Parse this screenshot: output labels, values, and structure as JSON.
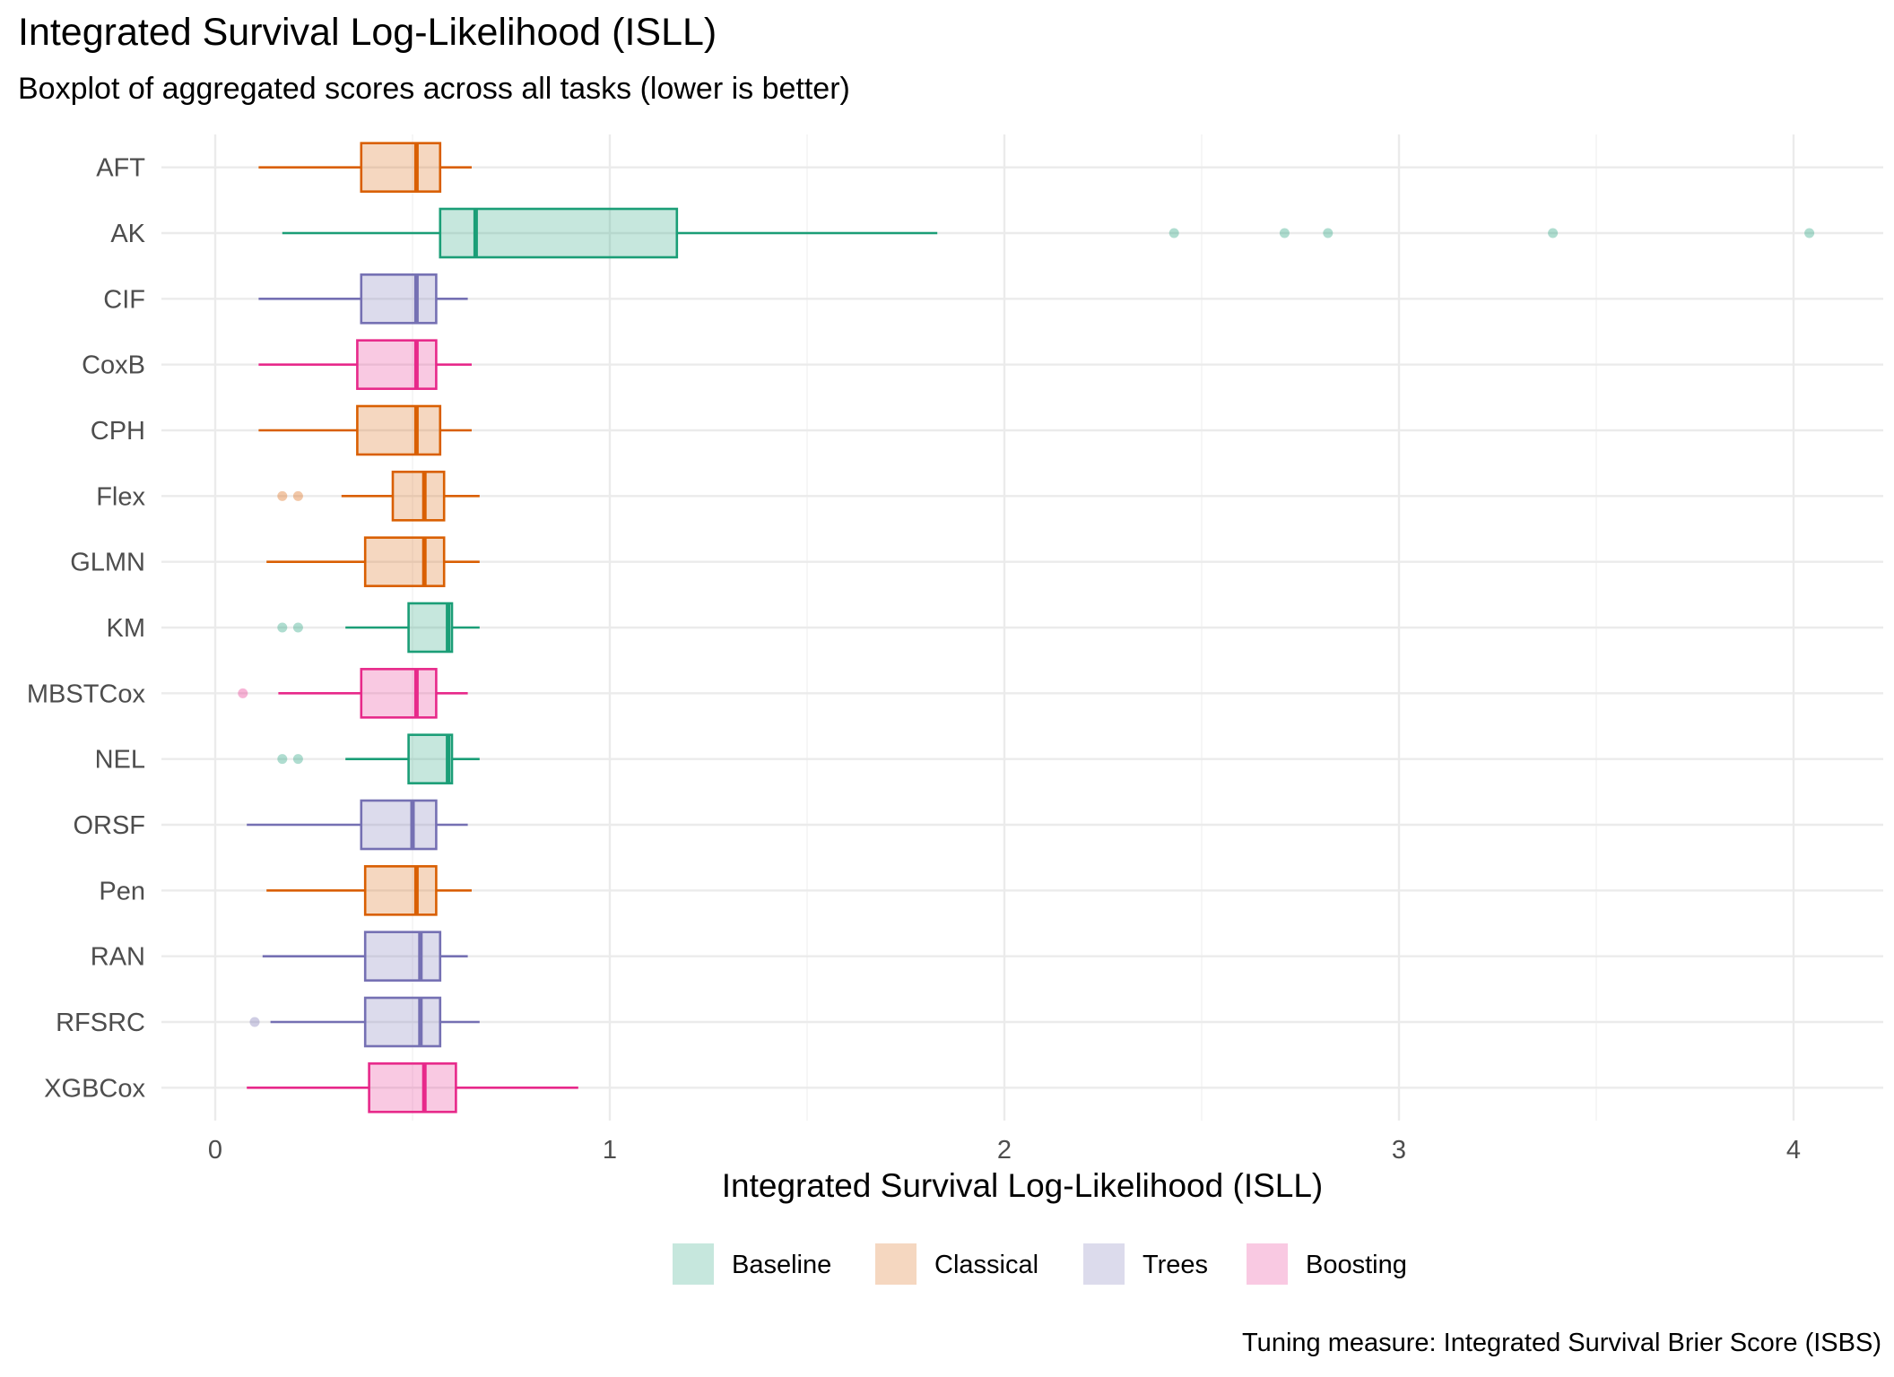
{
  "chart_data": {
    "type": "boxplot",
    "title": "Integrated Survival Log-Likelihood (ISLL)",
    "subtitle": "Boxplot of aggregated scores across all tasks (lower is better)",
    "xlabel": "Integrated Survival Log-Likelihood (ISLL)",
    "ylabel": "",
    "xlim": [
      -0.13,
      4.23
    ],
    "x_ticks": [
      0,
      1,
      2,
      3,
      4
    ],
    "grid": true,
    "legend_position": "bottom",
    "caption": "Tuning measure: Integrated Survival Brier Score (ISBS)",
    "groups": [
      {
        "name": "Baseline",
        "color": "#1B9E77"
      },
      {
        "name": "Classical",
        "color": "#D95F02"
      },
      {
        "name": "Trees",
        "color": "#7570B3"
      },
      {
        "name": "Boosting",
        "color": "#E7298A"
      }
    ],
    "series": [
      {
        "name": "AFT",
        "group": "Classical",
        "whisker_low": 0.11,
        "q1": 0.37,
        "median": 0.51,
        "q3": 0.57,
        "whisker_high": 0.65,
        "outliers": []
      },
      {
        "name": "AK",
        "group": "Baseline",
        "whisker_low": 0.17,
        "q1": 0.57,
        "median": 0.66,
        "q3": 1.17,
        "whisker_high": 1.83,
        "outliers": [
          2.43,
          2.71,
          2.82,
          3.39,
          4.04
        ]
      },
      {
        "name": "CIF",
        "group": "Trees",
        "whisker_low": 0.11,
        "q1": 0.37,
        "median": 0.51,
        "q3": 0.56,
        "whisker_high": 0.64,
        "outliers": []
      },
      {
        "name": "CoxB",
        "group": "Boosting",
        "whisker_low": 0.11,
        "q1": 0.36,
        "median": 0.51,
        "q3": 0.56,
        "whisker_high": 0.65,
        "outliers": []
      },
      {
        "name": "CPH",
        "group": "Classical",
        "whisker_low": 0.11,
        "q1": 0.36,
        "median": 0.51,
        "q3": 0.57,
        "whisker_high": 0.65,
        "outliers": []
      },
      {
        "name": "Flex",
        "group": "Classical",
        "whisker_low": 0.32,
        "q1": 0.45,
        "median": 0.53,
        "q3": 0.58,
        "whisker_high": 0.67,
        "outliers": [
          0.17,
          0.21
        ]
      },
      {
        "name": "GLMN",
        "group": "Classical",
        "whisker_low": 0.13,
        "q1": 0.38,
        "median": 0.53,
        "q3": 0.58,
        "whisker_high": 0.67,
        "outliers": []
      },
      {
        "name": "KM",
        "group": "Baseline",
        "whisker_low": 0.33,
        "q1": 0.49,
        "median": 0.59,
        "q3": 0.6,
        "whisker_high": 0.67,
        "outliers": [
          0.17,
          0.21
        ]
      },
      {
        "name": "MBSTCox",
        "group": "Boosting",
        "whisker_low": 0.16,
        "q1": 0.37,
        "median": 0.51,
        "q3": 0.56,
        "whisker_high": 0.64,
        "outliers": [
          0.07
        ]
      },
      {
        "name": "NEL",
        "group": "Baseline",
        "whisker_low": 0.33,
        "q1": 0.49,
        "median": 0.59,
        "q3": 0.6,
        "whisker_high": 0.67,
        "outliers": [
          0.17,
          0.21
        ]
      },
      {
        "name": "ORSF",
        "group": "Trees",
        "whisker_low": 0.08,
        "q1": 0.37,
        "median": 0.5,
        "q3": 0.56,
        "whisker_high": 0.64,
        "outliers": []
      },
      {
        "name": "Pen",
        "group": "Classical",
        "whisker_low": 0.13,
        "q1": 0.38,
        "median": 0.51,
        "q3": 0.56,
        "whisker_high": 0.65,
        "outliers": []
      },
      {
        "name": "RAN",
        "group": "Trees",
        "whisker_low": 0.12,
        "q1": 0.38,
        "median": 0.52,
        "q3": 0.57,
        "whisker_high": 0.64,
        "outliers": []
      },
      {
        "name": "RFSRC",
        "group": "Trees",
        "whisker_low": 0.14,
        "q1": 0.38,
        "median": 0.52,
        "q3": 0.57,
        "whisker_high": 0.67,
        "outliers": [
          0.1
        ]
      },
      {
        "name": "XGBCox",
        "group": "Boosting",
        "whisker_low": 0.08,
        "q1": 0.39,
        "median": 0.53,
        "q3": 0.61,
        "whisker_high": 0.92,
        "outliers": []
      }
    ]
  }
}
